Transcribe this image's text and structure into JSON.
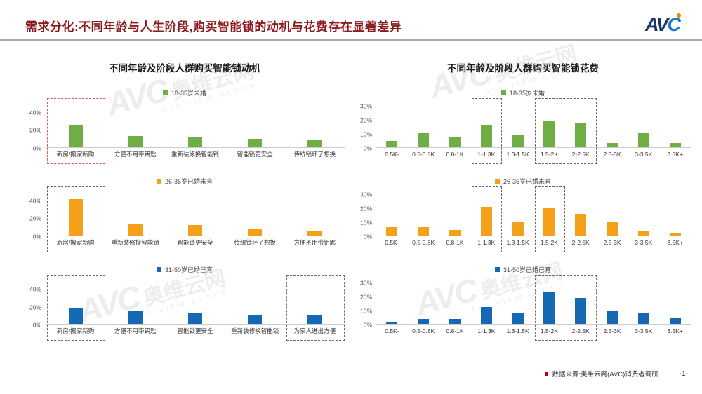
{
  "header": {
    "title": "需求分化:不同年龄与人生阶段,购买智能锁的动机与花费存在显著差异",
    "logo_av": "AV",
    "logo_c": "C"
  },
  "watermark": {
    "brand": "AVC",
    "cn": "奥维云网",
    "sub": "ALL VIEW CLOUD"
  },
  "colors": {
    "green": "#6fae44",
    "orange": "#f5a01a",
    "blue": "#1569b3",
    "title_red": "#8b1a1f",
    "box_red": "#e05a50",
    "box_dark": "#666666"
  },
  "chart_data": [
    {
      "type": "bar-group",
      "title": "不同年龄及阶段人群购买智能锁动机",
      "charts": [
        {
          "type": "bar",
          "legend": "18-35岁未婚",
          "color": "#6fae44",
          "categories": [
            "新房/搬家新购",
            "方便不用带钥匙",
            "重新装修换智能锁",
            "智能锁更安全",
            "传统锁坏了想换"
          ],
          "values": [
            25,
            13,
            11,
            10,
            9
          ],
          "ymax": 52,
          "yticks": [
            0,
            20,
            40
          ],
          "highlights": [
            {
              "from": 0,
              "to": 0,
              "color": "box_red"
            }
          ]
        },
        {
          "type": "bar",
          "legend": "26-35岁已婚未育",
          "color": "#f5a01a",
          "categories": [
            "新房/搬家新购",
            "重新装修换智能锁",
            "智能锁更安全",
            "传统锁坏了想换",
            "方便不用带钥匙"
          ],
          "values": [
            42,
            13,
            12,
            8,
            6
          ],
          "ymax": 52,
          "yticks": [
            0,
            20,
            40
          ],
          "highlights": [
            {
              "from": 0,
              "to": 0,
              "color": "box_dark"
            }
          ]
        },
        {
          "type": "bar",
          "legend": "31-50岁已婚已育",
          "color": "#1569b3",
          "categories": [
            "新房/搬家新购",
            "方便不用带钥匙",
            "智能锁更安全",
            "重新装修换智能锁",
            "为家人进出方便"
          ],
          "values": [
            19,
            15,
            12,
            10,
            10
          ],
          "ymax": 52,
          "yticks": [
            0,
            20,
            40
          ],
          "highlights": [
            {
              "from": 0,
              "to": 0,
              "color": "box_dark"
            },
            {
              "from": 4,
              "to": 4,
              "color": "box_dark"
            }
          ]
        }
      ]
    },
    {
      "type": "bar-group",
      "title": "不同年龄及阶段人群购买智能锁花费",
      "charts": [
        {
          "type": "bar",
          "legend": "18-35岁未婚",
          "color": "#6fae44",
          "categories": [
            "0.5K-",
            "0.5-0.8K",
            "0.8-1K",
            "1-1.3K",
            "1.3-1.5K",
            "1.5-2K",
            "2-2.5K",
            "2.5-3K",
            "3-3.5K",
            "3.5K+"
          ],
          "values": [
            4.5,
            10,
            7,
            16.5,
            9,
            19,
            17.5,
            3,
            10,
            3
          ],
          "ymax": 33,
          "yticks": [
            0,
            10,
            20,
            30
          ],
          "highlights": [
            {
              "from": 3,
              "to": 3,
              "color": "box_dark"
            },
            {
              "from": 5,
              "to": 6,
              "color": "box_dark"
            }
          ]
        },
        {
          "type": "bar",
          "legend": "26-35岁已婚未育",
          "color": "#f5a01a",
          "categories": [
            "0.5K-",
            "0.5-0.8K",
            "0.8-1K",
            "1-1.3K",
            "1.3-1.5K",
            "1.5-2K",
            "2-2.5K",
            "2.5-3K",
            "3-3.5K",
            "3.5K+"
          ],
          "values": [
            6,
            6,
            4,
            21,
            10.5,
            20.5,
            16,
            9.5,
            3.5,
            2
          ],
          "ymax": 33,
          "yticks": [
            0,
            10,
            20,
            30
          ],
          "highlights": [
            {
              "from": 3,
              "to": 3,
              "color": "box_dark"
            },
            {
              "from": 5,
              "to": 5,
              "color": "box_dark"
            }
          ]
        },
        {
          "type": "bar",
          "legend": "31-50岁已婚已育",
          "color": "#1569b3",
          "categories": [
            "0.5K-",
            "0.5-0.8K",
            "0.8-1K",
            "1-1.3K",
            "1.3-1.5K",
            "1.5-2K",
            "2-2.5K",
            "2.5-3K",
            "3-3.5K",
            "3.5K+"
          ],
          "values": [
            1.5,
            4,
            4,
            12.5,
            8.5,
            23,
            19,
            10,
            8.5,
            4.5
          ],
          "ymax": 33,
          "yticks": [
            0,
            10,
            20,
            30
          ],
          "highlights": [
            {
              "from": 5,
              "to": 6,
              "color": "box_dark"
            }
          ]
        }
      ]
    }
  ],
  "footer": {
    "source": "数据来源:奥维云网(AVC)消费者调研",
    "page": "-1-"
  }
}
